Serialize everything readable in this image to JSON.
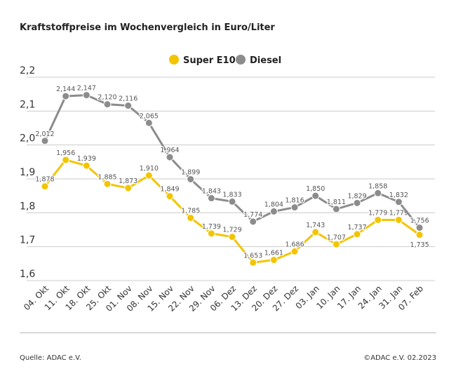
{
  "title": "Kraftstoffpreise im Wochenvergleich in Euro/Liter",
  "source": "Quelle: ADAC e.V.",
  "copyright": "©ADAC e.V. 02.2023",
  "chart_data": {
    "type": "line",
    "title": "Kraftstoffpreise im Wochenvergleich in Euro/Liter",
    "categories": [
      "04. Okt",
      "11. Okt",
      "18. Okt",
      "25. Okt",
      "01. Nov",
      "08. Nov",
      "15. Nov",
      "22. Nov",
      "29. Nov",
      "06. Dez",
      "13. Dez",
      "20. Dez",
      "27. Dez",
      "03. Jan",
      "10. Jan",
      "17. Jan",
      "24. Jan",
      "31. Jan",
      "07. Feb"
    ],
    "ylim": [
      1.6,
      2.2
    ],
    "yticks": [
      "1,6",
      "1,7",
      "1,8",
      "1,9",
      "2,0",
      "2,1",
      "2,2"
    ],
    "grid": true,
    "legend": "top-center",
    "series": [
      {
        "name": "Super E10",
        "color": "#f2c500",
        "values": [
          1.878,
          1.956,
          1.939,
          1.885,
          1.873,
          1.91,
          1.849,
          1.785,
          1.739,
          1.729,
          1.653,
          1.661,
          1.686,
          1.743,
          1.707,
          1.737,
          1.779,
          1.779,
          1.735
        ]
      },
      {
        "name": "Diesel",
        "color": "#8c8c8c",
        "values": [
          2.012,
          2.144,
          2.147,
          2.12,
          2.116,
          2.065,
          1.964,
          1.899,
          1.843,
          1.833,
          1.774,
          1.804,
          1.816,
          1.85,
          1.811,
          1.829,
          1.858,
          1.832,
          1.756
        ]
      }
    ]
  }
}
